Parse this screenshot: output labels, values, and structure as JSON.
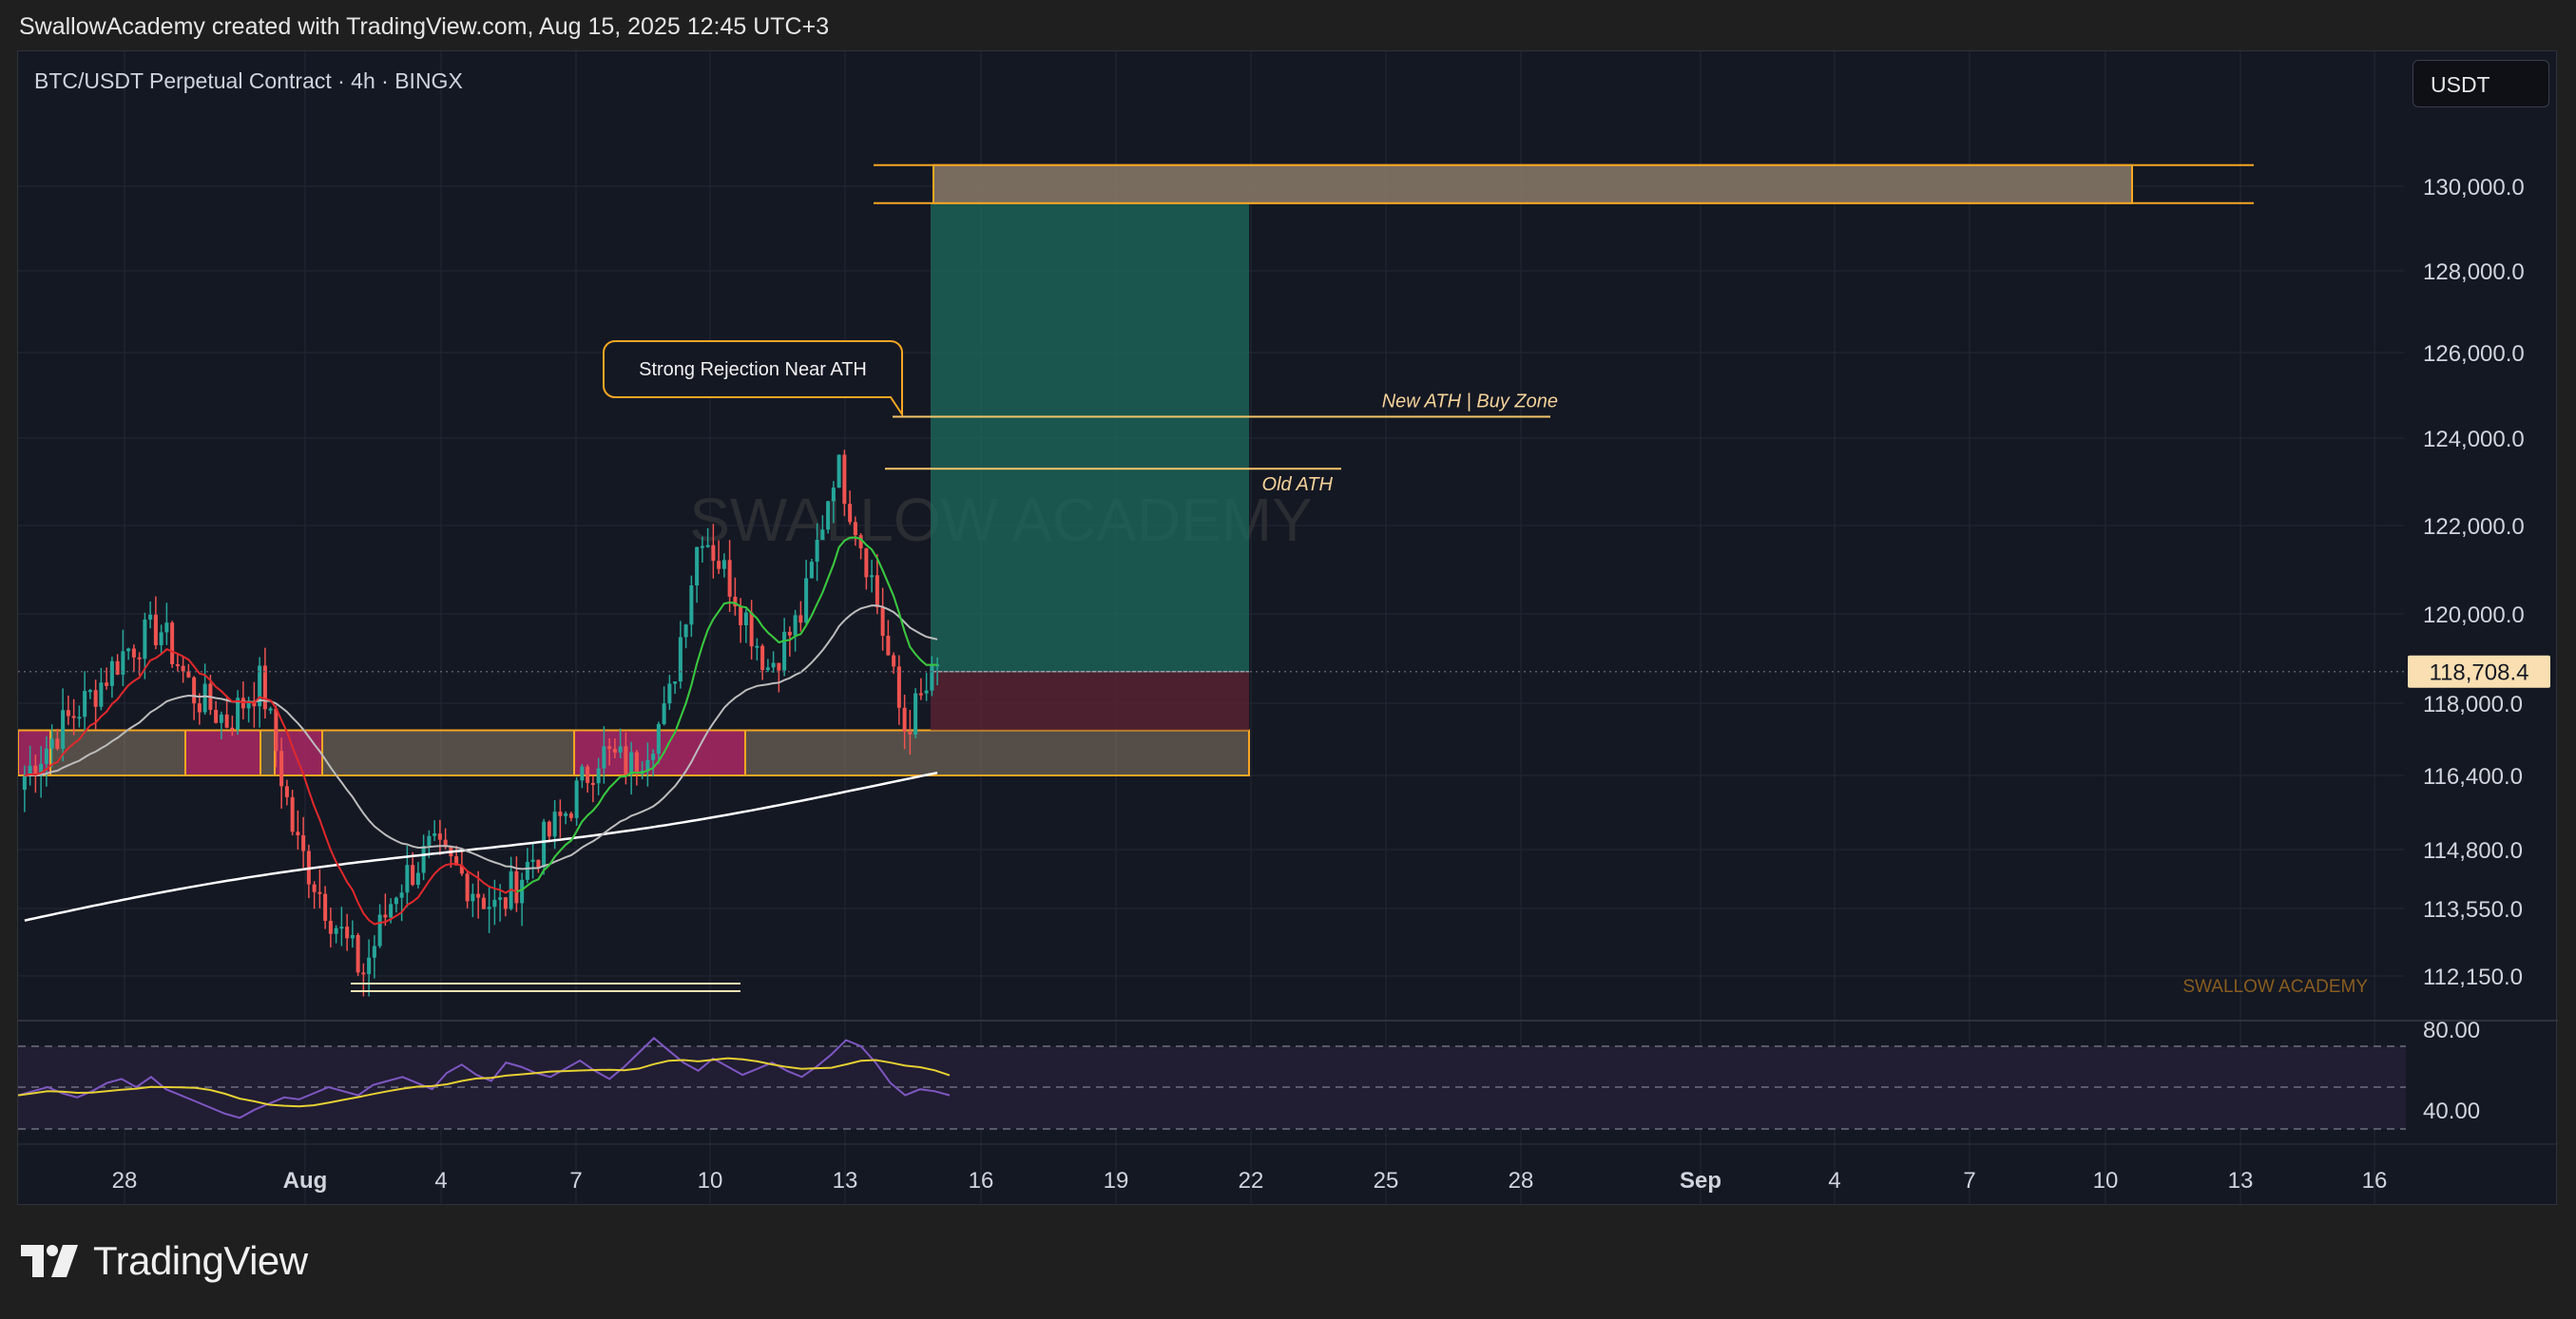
{
  "header": {
    "text": "SwallowAcademy created with TradingView.com, Aug 15, 2025 12:45 UTC+3"
  },
  "symbol": {
    "label": "BTC/USDT Perpetual Contract · 4h · BINGX"
  },
  "currency_button": {
    "label": "USDT"
  },
  "watermark": {
    "main": "SWALLOW ACADEMY",
    "corner": "SWALLOW ACADEMY"
  },
  "footer": {
    "brand": "TradingView"
  },
  "colors": {
    "background": "#141823",
    "grid": "#232734",
    "up_candle": "#26a69a",
    "down_candle": "#ef5350",
    "zone_fill": "#8a7b68",
    "zone_border": "#f5a623",
    "supply_box": "#a01e5f",
    "target_box": "#1c6b5e",
    "stop_box": "#5a2331",
    "ema_fast": "#2ecc40",
    "ema_mid": "#e0292b",
    "ema_slow": "#bcbcbc",
    "ema_long": "#ffffff",
    "rsi": "#7e57c2",
    "rsi_ma": "#e5d033",
    "last_price_bg": "#f9dfb1"
  },
  "chart_data": {
    "type": "candlestick",
    "symbol": "BTC/USDT Perpetual Contract",
    "timeframe": "4h",
    "exchange": "BINGX",
    "price_axis_ticks": [
      130000,
      128000,
      126000,
      124000,
      122000,
      120000,
      118000,
      116400,
      114800,
      113550,
      112150
    ],
    "price_axis_labels": [
      "130,000.0",
      "128,000.0",
      "126,000.0",
      "124,000.0",
      "122,000.0",
      "120,000.0",
      "118,000.0",
      "116,400.0",
      "114,800.0",
      "113,550.0",
      "112,150.0"
    ],
    "last_price": 118708.4,
    "last_price_label": "118,708.4",
    "date_ticks": [
      "28",
      "Aug",
      "4",
      "7",
      "10",
      "13",
      "16",
      "19",
      "22",
      "25",
      "28",
      "Sep",
      "4",
      "7",
      "10",
      "13",
      "16"
    ],
    "ohlc_path": [
      {
        "date": "Jul 25 20:00",
        "close": 116400
      },
      {
        "date": "Jul 26",
        "close": 117400
      },
      {
        "date": "Jul 27",
        "close": 118200
      },
      {
        "date": "Jul 28",
        "close": 119200
      },
      {
        "date": "Jul 28 12:00",
        "close": 119700
      },
      {
        "date": "Jul 29",
        "close": 118200
      },
      {
        "date": "Jul 30",
        "close": 117600
      },
      {
        "date": "Jul 31",
        "close": 118500
      },
      {
        "date": "Aug 1",
        "close": 115000
      },
      {
        "date": "Aug 2",
        "close": 113500
      },
      {
        "date": "Aug 2 12:00",
        "close": 112200
      },
      {
        "date": "Aug 3",
        "close": 114000
      },
      {
        "date": "Aug 4",
        "close": 114800
      },
      {
        "date": "Aug 5",
        "close": 114200
      },
      {
        "date": "Aug 6",
        "close": 113500
      },
      {
        "date": "Aug 6 12:00",
        "close": 114600
      },
      {
        "date": "Aug 7",
        "close": 115600
      },
      {
        "date": "Aug 8",
        "close": 116900
      },
      {
        "date": "Aug 9",
        "close": 116600
      },
      {
        "date": "Aug 10",
        "close": 117800
      },
      {
        "date": "Aug 11",
        "close": 122000
      },
      {
        "date": "Aug 11 12:00",
        "close": 120500
      },
      {
        "date": "Aug 12",
        "close": 118800
      },
      {
        "date": "Aug 13",
        "close": 120000
      },
      {
        "date": "Aug 14",
        "close": 123500
      },
      {
        "date": "Aug 14 12:00",
        "close": 121000
      },
      {
        "date": "Aug 15",
        "close": 117400
      },
      {
        "date": "Aug 15 12:00",
        "close": 118708.4
      }
    ],
    "indicators": [
      {
        "name": "EMA fast",
        "color": "#2ecc40"
      },
      {
        "name": "EMA mid",
        "color": "#e0292b"
      },
      {
        "name": "EMA slow",
        "color": "#bcbcbc"
      },
      {
        "name": "EMA long",
        "color": "#ffffff"
      }
    ],
    "zones": [
      {
        "type": "demand",
        "from": 116400,
        "to": 117400
      },
      {
        "type": "target",
        "from": 129600,
        "to": 130500
      },
      {
        "type": "long_target_area",
        "from": 118708.4,
        "to": 129600
      },
      {
        "type": "long_stop_area",
        "from": 117400,
        "to": 118708.4
      }
    ],
    "levels": [
      {
        "label": "New ATH | Buy Zone",
        "price": 124500
      },
      {
        "label": "Old ATH",
        "price": 123300
      }
    ],
    "annotations": [
      "Strong Rejection Near ATH"
    ],
    "rsi": {
      "axis_labels": [
        "80.00",
        "40.00"
      ],
      "levels": [
        70,
        50,
        30
      ],
      "values": [
        46,
        48,
        50,
        47,
        45,
        48,
        52,
        54,
        50,
        55,
        49,
        46,
        43,
        40,
        37,
        35,
        39,
        42,
        45,
        44,
        47,
        50,
        48,
        46,
        51,
        53,
        55,
        52,
        49,
        57,
        61,
        56,
        53,
        62,
        60,
        57,
        55,
        59,
        63,
        58,
        54,
        60,
        67,
        74,
        68,
        62,
        58,
        64,
        60,
        56,
        59,
        62,
        58,
        55,
        60,
        66,
        73,
        70,
        62,
        52,
        46,
        49,
        48,
        46
      ]
    }
  }
}
